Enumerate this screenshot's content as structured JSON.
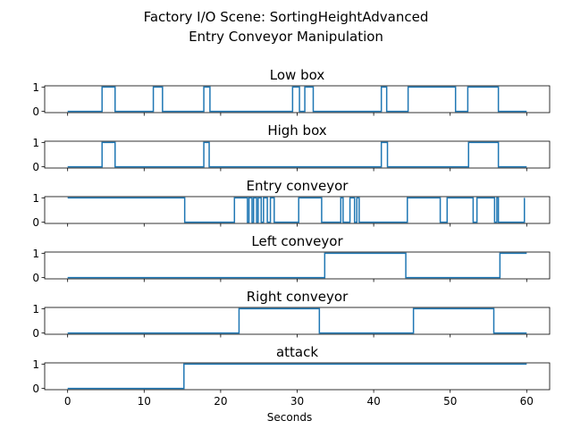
{
  "figure": {
    "title_line1": "Factory I/O Scene: SortingHeightAdvanced",
    "title_line2": "Entry Conveyor Manipulation",
    "xlabel": "Seconds"
  },
  "chart_data": {
    "type": "line",
    "step": true,
    "line_color": "#1f77b4",
    "xlim": [
      -3,
      63
    ],
    "x_ticks": [
      0,
      10,
      20,
      30,
      40,
      50,
      60
    ],
    "y_ticks": [
      0,
      1
    ],
    "grid": false,
    "legend": "none",
    "subplots": [
      {
        "title": "Low box",
        "ylim": [
          -0.05,
          1.05
        ],
        "points": [
          [
            0,
            0
          ],
          [
            4.5,
            0
          ],
          [
            4.5,
            1
          ],
          [
            6.2,
            1
          ],
          [
            6.2,
            0
          ],
          [
            11.2,
            0
          ],
          [
            11.2,
            1
          ],
          [
            12.4,
            1
          ],
          [
            12.4,
            0
          ],
          [
            17.8,
            0
          ],
          [
            17.8,
            1
          ],
          [
            18.6,
            1
          ],
          [
            18.6,
            0
          ],
          [
            29.4,
            0
          ],
          [
            29.4,
            1
          ],
          [
            30.3,
            1
          ],
          [
            30.3,
            0
          ],
          [
            31,
            0
          ],
          [
            31,
            1
          ],
          [
            32.1,
            1
          ],
          [
            32.1,
            0
          ],
          [
            41,
            0
          ],
          [
            41,
            1
          ],
          [
            41.7,
            1
          ],
          [
            41.7,
            0
          ],
          [
            44.5,
            0
          ],
          [
            44.5,
            1
          ],
          [
            50.7,
            1
          ],
          [
            50.7,
            0
          ],
          [
            52.3,
            0
          ],
          [
            52.3,
            1
          ],
          [
            56.3,
            1
          ],
          [
            56.3,
            0
          ],
          [
            60,
            0
          ]
        ]
      },
      {
        "title": "High box",
        "ylim": [
          -0.05,
          1.05
        ],
        "points": [
          [
            0,
            0
          ],
          [
            4.5,
            0
          ],
          [
            4.5,
            1
          ],
          [
            6.2,
            1
          ],
          [
            6.2,
            0
          ],
          [
            17.8,
            0
          ],
          [
            17.8,
            1
          ],
          [
            18.5,
            1
          ],
          [
            18.5,
            0
          ],
          [
            41,
            0
          ],
          [
            41,
            1
          ],
          [
            41.8,
            1
          ],
          [
            41.8,
            0
          ],
          [
            52.4,
            0
          ],
          [
            52.4,
            1
          ],
          [
            56.3,
            1
          ],
          [
            56.3,
            0
          ],
          [
            60,
            0
          ]
        ]
      },
      {
        "title": "Entry conveyor",
        "ylim": [
          -0.05,
          1.05
        ],
        "points": [
          [
            0,
            1
          ],
          [
            15.3,
            1
          ],
          [
            15.3,
            0
          ],
          [
            21.8,
            0
          ],
          [
            21.8,
            1
          ],
          [
            23.5,
            1
          ],
          [
            23.5,
            0
          ],
          [
            23.7,
            0
          ],
          [
            23.7,
            1
          ],
          [
            24.1,
            1
          ],
          [
            24.1,
            0
          ],
          [
            24.3,
            0
          ],
          [
            24.3,
            1
          ],
          [
            24.7,
            1
          ],
          [
            24.7,
            0
          ],
          [
            24.9,
            0
          ],
          [
            24.9,
            1
          ],
          [
            25.3,
            1
          ],
          [
            25.3,
            0
          ],
          [
            25.6,
            0
          ],
          [
            25.6,
            1
          ],
          [
            26.1,
            1
          ],
          [
            26.1,
            0
          ],
          [
            26.5,
            0
          ],
          [
            26.5,
            1
          ],
          [
            27,
            1
          ],
          [
            27,
            0
          ],
          [
            30.2,
            0
          ],
          [
            30.2,
            1
          ],
          [
            33.2,
            1
          ],
          [
            33.2,
            0
          ],
          [
            35.7,
            0
          ],
          [
            35.7,
            1
          ],
          [
            36,
            1
          ],
          [
            36,
            0
          ],
          [
            36.9,
            0
          ],
          [
            36.9,
            1
          ],
          [
            37.5,
            1
          ],
          [
            37.5,
            0
          ],
          [
            37.8,
            0
          ],
          [
            37.8,
            1
          ],
          [
            38.1,
            1
          ],
          [
            38.1,
            0
          ],
          [
            44.4,
            0
          ],
          [
            44.4,
            1
          ],
          [
            48.7,
            1
          ],
          [
            48.7,
            0
          ],
          [
            49.6,
            0
          ],
          [
            49.6,
            1
          ],
          [
            53,
            1
          ],
          [
            53,
            0
          ],
          [
            53.5,
            0
          ],
          [
            53.5,
            1
          ],
          [
            55.8,
            1
          ],
          [
            55.8,
            0
          ],
          [
            56.1,
            0
          ],
          [
            56.1,
            1
          ],
          [
            56.3,
            1
          ],
          [
            56.3,
            0
          ],
          [
            59.7,
            0
          ],
          [
            59.7,
            1
          ]
        ]
      },
      {
        "title": "Left conveyor",
        "ylim": [
          -0.05,
          1.05
        ],
        "points": [
          [
            0,
            0
          ],
          [
            33.6,
            0
          ],
          [
            33.6,
            1
          ],
          [
            44.2,
            1
          ],
          [
            44.2,
            0
          ],
          [
            56.5,
            0
          ],
          [
            56.5,
            1
          ],
          [
            60,
            1
          ]
        ]
      },
      {
        "title": "Right conveyor",
        "ylim": [
          -0.05,
          1.05
        ],
        "points": [
          [
            0,
            0
          ],
          [
            22.4,
            0
          ],
          [
            22.4,
            1
          ],
          [
            32.9,
            1
          ],
          [
            32.9,
            0
          ],
          [
            45.2,
            0
          ],
          [
            45.2,
            1
          ],
          [
            55.7,
            1
          ],
          [
            55.7,
            0
          ],
          [
            60,
            0
          ]
        ]
      },
      {
        "title": "attack",
        "ylim": [
          -0.05,
          1.05
        ],
        "points": [
          [
            0,
            0
          ],
          [
            15.2,
            0
          ],
          [
            15.2,
            1
          ],
          [
            60,
            1
          ]
        ]
      }
    ]
  }
}
